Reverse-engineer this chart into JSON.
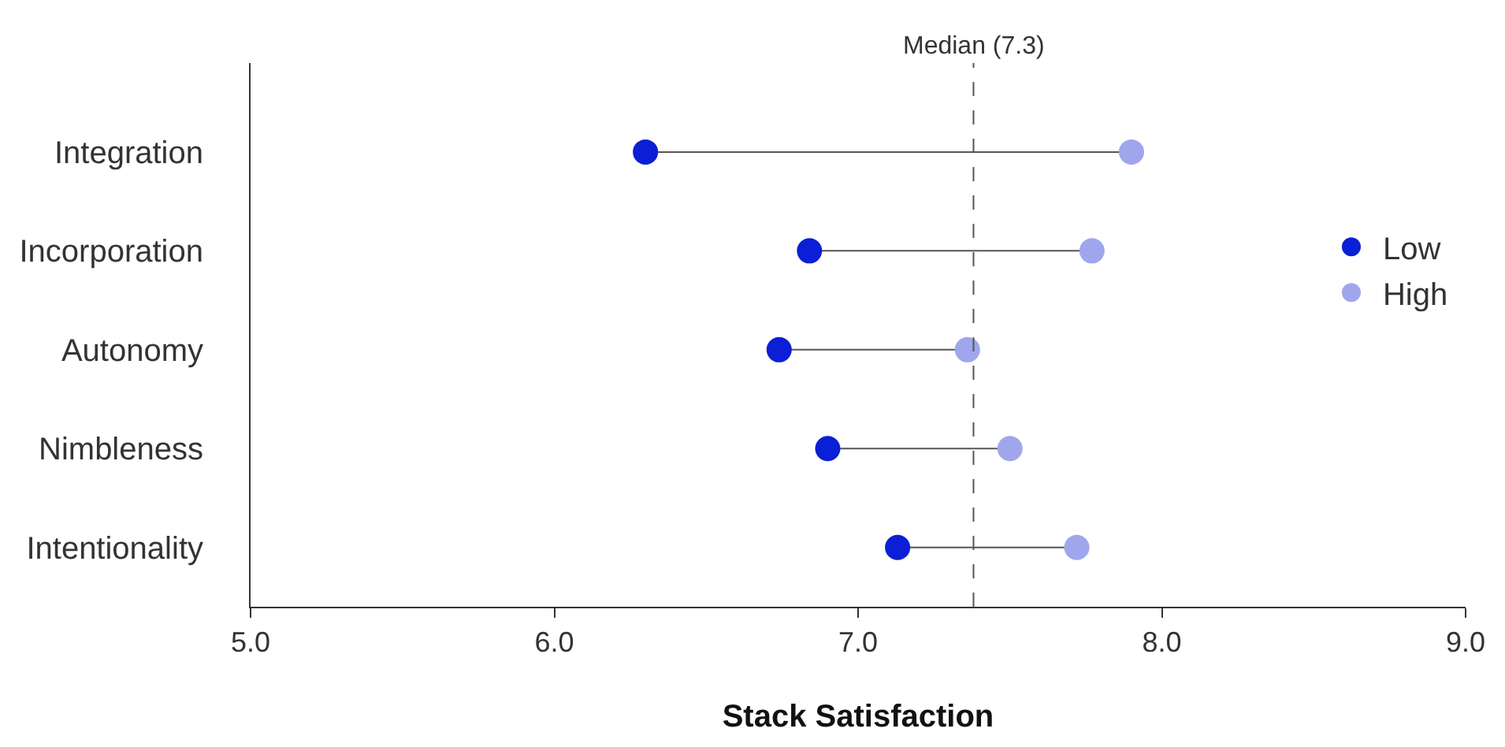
{
  "chart_data": {
    "type": "scatter",
    "orientation": "horizontal",
    "xlabel": "Stack Satisfaction",
    "categories": [
      "Integration",
      "Incorporation",
      "Autonomy",
      "Nimbleness",
      "Intentionality"
    ],
    "series": [
      {
        "name": "Low",
        "color": "#0a1fd6",
        "values": [
          6.3,
          6.84,
          6.74,
          6.9,
          7.13
        ]
      },
      {
        "name": "High",
        "color": "#a0a6ec",
        "values": [
          7.9,
          7.77,
          7.36,
          7.5,
          7.72
        ]
      }
    ],
    "xlim": [
      5,
      9
    ],
    "xticks": [
      {
        "value": 5,
        "label": "5.0"
      },
      {
        "value": 6,
        "label": "6.0"
      },
      {
        "value": 7,
        "label": "7.0"
      },
      {
        "value": 8,
        "label": "8.0"
      },
      {
        "value": 9,
        "label": "9.0"
      }
    ],
    "ref_lines": [
      {
        "axis": "x",
        "value": 7.38,
        "label": "Median (7.3)",
        "color": "#555555",
        "line_style": "dashed"
      }
    ],
    "legend": "right",
    "marker": "circle"
  }
}
